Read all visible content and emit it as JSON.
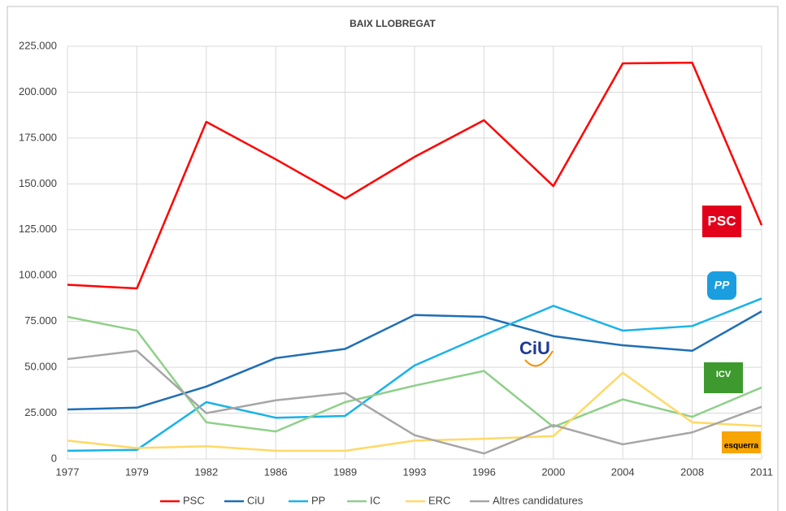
{
  "chart_data": {
    "type": "line",
    "title": "BAIX LLOBREGAT",
    "categories": [
      "1977",
      "1979",
      "1982",
      "1986",
      "1989",
      "1993",
      "1996",
      "2000",
      "2004",
      "2008",
      "2011"
    ],
    "series": [
      {
        "name": "PSC",
        "color": "#ff0000",
        "values": [
          95000,
          93000,
          183800,
          163400,
          142000,
          164700,
          184700,
          148800,
          215700,
          216100,
          127500
        ]
      },
      {
        "name": "CiU",
        "color": "#1f6eb5",
        "values": [
          27000,
          28000,
          39500,
          55000,
          60000,
          78500,
          77500,
          67000,
          62000,
          59000,
          80500
        ]
      },
      {
        "name": "PP",
        "color": "#19b2ea",
        "values": [
          4500,
          5000,
          31000,
          22500,
          23500,
          51000,
          67500,
          83500,
          70000,
          72500,
          87500
        ]
      },
      {
        "name": "IC",
        "color": "#8fd08a",
        "values": [
          77500,
          70000,
          20000,
          15000,
          31000,
          40000,
          48000,
          17500,
          32500,
          23000,
          39000
        ]
      },
      {
        "name": "ERC",
        "color": "#ffd966",
        "values": [
          10000,
          6000,
          7000,
          4500,
          4500,
          10000,
          11000,
          12500,
          47000,
          20000,
          18000
        ]
      },
      {
        "name": "Altres candidatures",
        "color": "#a6a6a6",
        "values": [
          54500,
          59000,
          25000,
          32000,
          36000,
          13000,
          3000,
          18500,
          8000,
          14500,
          28500
        ]
      }
    ],
    "ylim": [
      0,
      225000
    ],
    "yticks": [
      0,
      {
        "value": 25000,
        "label": "25.000"
      },
      {
        "value": 50000,
        "label": "50.000"
      },
      {
        "value": 75000,
        "label": "75.000"
      },
      {
        "value": 100000,
        "label": "100.000"
      },
      {
        "value": 125000,
        "label": "125.000"
      },
      {
        "value": 150000,
        "label": "150.000"
      },
      {
        "value": 175000,
        "label": "175.000"
      },
      {
        "value": 200000,
        "label": "200.000"
      },
      {
        "value": 225000,
        "label": "225.000"
      }
    ],
    "grid": true,
    "legend": "bottom",
    "annotations": [
      "PSC",
      "PP",
      "CiU",
      "ICV",
      "esquerra"
    ]
  }
}
